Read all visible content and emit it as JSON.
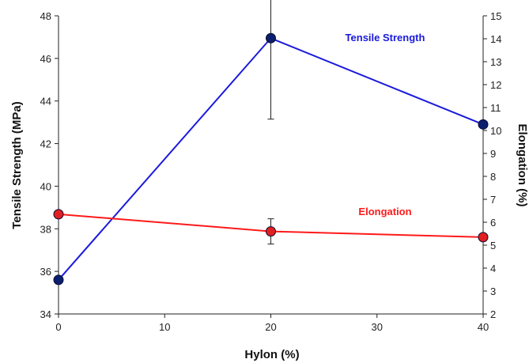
{
  "chart_data": {
    "type": "line",
    "title": "",
    "xlabel": "Hylon (%)",
    "ylabel": "Tensile Strength (MPa)",
    "y2label": "Elongation (%)",
    "xlim": [
      0,
      40
    ],
    "ylim": [
      34,
      48
    ],
    "y2lim": [
      2,
      15
    ],
    "x_ticks": [
      0,
      10,
      20,
      30,
      40
    ],
    "y_ticks": [
      34,
      36,
      38,
      40,
      42,
      44,
      46,
      48
    ],
    "y2_ticks": [
      2,
      3,
      4,
      5,
      6,
      7,
      8,
      9,
      10,
      11,
      12,
      13,
      14,
      15
    ],
    "grid": false,
    "legend": "none",
    "series": [
      {
        "name": "Tensile Strength",
        "axis": "left",
        "color": "#1a1adc",
        "marker_color": "#0b1f6e",
        "x": [
          0,
          20,
          40
        ],
        "y": [
          35.6,
          46.95,
          42.9
        ],
        "error": [
          0,
          3.8,
          0
        ]
      },
      {
        "name": "Elongation",
        "axis": "right",
        "color": "#ff1a1a",
        "marker_color": "#e02020",
        "x": [
          0,
          20,
          40
        ],
        "y": [
          6.35,
          5.6,
          5.35
        ],
        "error": [
          0.05,
          0.55,
          0
        ]
      }
    ],
    "annotations": [
      {
        "text": "Tensile Strength",
        "color": "#1a1adc",
        "x": 35,
        "y": 46.95
      },
      {
        "text": "Elongation",
        "color": "#ff1a1a",
        "x": 35,
        "y": 38.6
      }
    ]
  }
}
